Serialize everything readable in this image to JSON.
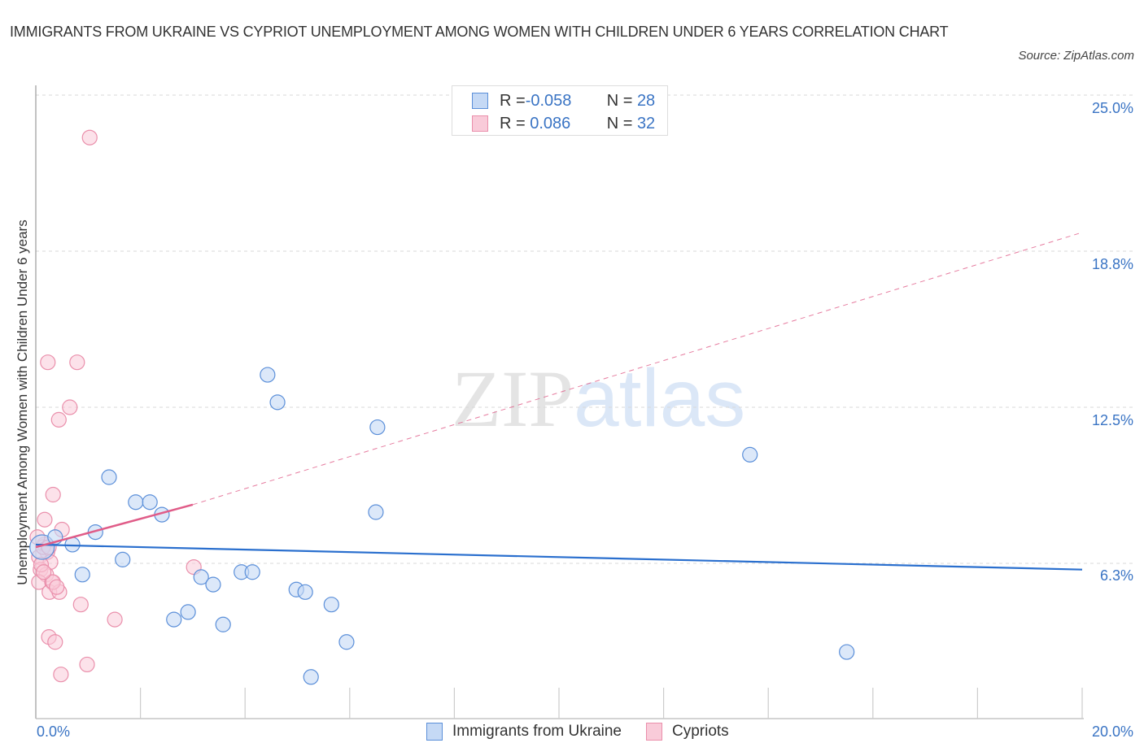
{
  "title": "IMMIGRANTS FROM UKRAINE VS CYPRIOT UNEMPLOYMENT AMONG WOMEN WITH CHILDREN UNDER 6 YEARS CORRELATION CHART",
  "source": "Source: ZipAtlas.com",
  "watermark": {
    "zip": "ZIP",
    "atlas": "atlas"
  },
  "colors": {
    "ukraine_fill": "#c5d9f5",
    "ukraine_stroke": "#5b8fd9",
    "ukraine_line": "#2a6fce",
    "cypriot_fill": "#f9cbd9",
    "cypriot_stroke": "#ea8fab",
    "cypriot_line": "#e05c88",
    "axis_label": "#3a74c4"
  },
  "legend_top": [
    {
      "r_label": "R = ",
      "r_value": "-0.058",
      "n_label": "N = ",
      "n_value": "28"
    },
    {
      "r_label": "R = ",
      "r_value": " 0.086",
      "n_label": "N = ",
      "n_value": "32"
    }
  ],
  "legend_bottom": [
    {
      "label": "Immigrants from Ukraine"
    },
    {
      "label": "Cypriots"
    }
  ],
  "y_ticks": [
    "25.0%",
    "18.8%",
    "12.5%",
    "6.3%"
  ],
  "x_ticks": [
    "0.0%",
    "20.0%"
  ],
  "chart_data": {
    "type": "scatter",
    "title": "IMMIGRANTS FROM UKRAINE VS CYPRIOT UNEMPLOYMENT AMONG WOMEN WITH CHILDREN UNDER 6 YEARS CORRELATION CHART",
    "xlabel": "",
    "ylabel": "Unemployment Among Women with Children Under 6 years",
    "xlim": [
      0,
      20
    ],
    "ylim": [
      0,
      25
    ],
    "x_tick_labels": [
      "0.0%",
      "20.0%"
    ],
    "y_tick_labels": [
      "6.3%",
      "12.5%",
      "18.8%",
      "25.0%"
    ],
    "grid": true,
    "legend_position": "top-center and bottom",
    "series": [
      {
        "name": "Immigrants from Ukraine",
        "R": -0.058,
        "N": 28,
        "trend": {
          "x": [
            0,
            20
          ],
          "y": [
            7.0,
            6.0
          ]
        },
        "points": [
          [
            0.12,
            6.9
          ],
          [
            0.37,
            7.3
          ],
          [
            0.7,
            7.0
          ],
          [
            1.14,
            7.5
          ],
          [
            0.89,
            5.8
          ],
          [
            1.4,
            9.7
          ],
          [
            1.66,
            6.4
          ],
          [
            1.91,
            8.7
          ],
          [
            2.18,
            8.7
          ],
          [
            2.41,
            8.2
          ],
          [
            2.64,
            4.0
          ],
          [
            2.91,
            4.3
          ],
          [
            3.16,
            5.7
          ],
          [
            3.39,
            5.4
          ],
          [
            3.58,
            3.8
          ],
          [
            3.93,
            5.9
          ],
          [
            4.14,
            5.9
          ],
          [
            4.43,
            13.8
          ],
          [
            4.62,
            12.7
          ],
          [
            4.98,
            5.2
          ],
          [
            5.15,
            5.1
          ],
          [
            5.65,
            4.6
          ],
          [
            5.94,
            3.1
          ],
          [
            5.26,
            1.7
          ],
          [
            6.5,
            8.3
          ],
          [
            6.53,
            11.7
          ],
          [
            13.65,
            10.6
          ],
          [
            15.5,
            2.7
          ]
        ]
      },
      {
        "name": "Cypriots",
        "R": 0.086,
        "N": 32,
        "trend": {
          "x": [
            0,
            3.0
          ],
          "y": [
            6.9,
            8.6
          ],
          "dashed_extension": {
            "x": [
              3.0,
              20
            ],
            "y": [
              8.6,
              19.5
            ]
          }
        },
        "points": [
          [
            1.03,
            23.3
          ],
          [
            0.23,
            14.3
          ],
          [
            0.79,
            14.3
          ],
          [
            0.65,
            12.5
          ],
          [
            0.44,
            12.0
          ],
          [
            0.33,
            9.0
          ],
          [
            0.17,
            8.0
          ],
          [
            0.5,
            7.6
          ],
          [
            0.16,
            7.0
          ],
          [
            0.22,
            6.7
          ],
          [
            0.06,
            6.5
          ],
          [
            0.28,
            6.3
          ],
          [
            0.09,
            6.0
          ],
          [
            0.2,
            5.8
          ],
          [
            0.06,
            5.5
          ],
          [
            0.31,
            5.5
          ],
          [
            0.26,
            5.1
          ],
          [
            0.45,
            5.1
          ],
          [
            0.33,
            5.5
          ],
          [
            0.14,
            6.9
          ],
          [
            0.03,
            7.3
          ],
          [
            0.25,
            6.9
          ],
          [
            3.02,
            6.1
          ],
          [
            0.86,
            4.6
          ],
          [
            1.51,
            4.0
          ],
          [
            0.25,
            3.3
          ],
          [
            0.37,
            3.1
          ],
          [
            0.98,
            2.2
          ],
          [
            0.48,
            1.8
          ],
          [
            0.1,
            6.2
          ],
          [
            0.4,
            5.3
          ],
          [
            0.15,
            5.9
          ]
        ]
      }
    ]
  }
}
